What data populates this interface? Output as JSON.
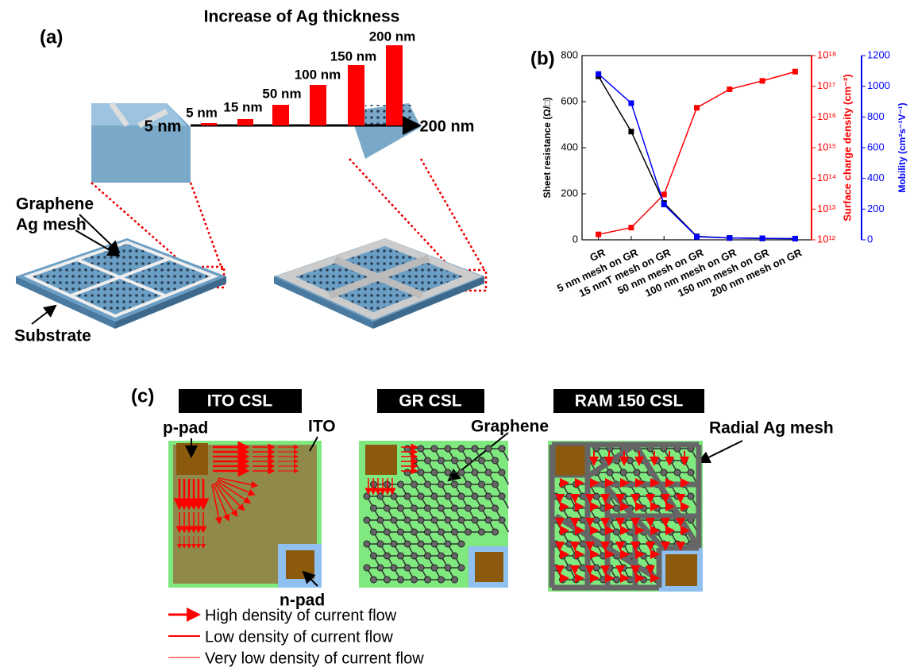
{
  "panel_a": {
    "label": "(a)",
    "title": "Increase of Ag thickness",
    "bar_labels": [
      "5 nm",
      "15 nm",
      "50 nm",
      "100 nm",
      "150 nm",
      "200 nm"
    ],
    "axis_start": "5 nm",
    "axis_end": "200 nm",
    "graphene": "Graphene",
    "ag_mesh": "Ag mesh",
    "substrate": "Substrate"
  },
  "chart_data": {
    "type": "line",
    "label": "(b)",
    "categories": [
      "GR",
      "5 nm mesh on GR",
      "15 nmT mesh on GR",
      "50 nm mesh on GR",
      "100 nm mesh on GR",
      "150 nm mesh on GR",
      "200 nm mesh on GR"
    ],
    "ylabel": "Sheet resistance (Ω/□)",
    "y2label": "Surface charge density (cm⁻²)",
    "y3label": "Mobility (cm²s⁻¹V⁻¹)",
    "ylim": [
      0,
      800
    ],
    "yticks": [
      0,
      200,
      400,
      600,
      800
    ],
    "y2lim": [
      1000000000000.0,
      1e+18
    ],
    "y2log": true,
    "y2ticks": [
      {
        "value": 1000000000000.0,
        "label": "10¹²"
      },
      {
        "value": 10000000000000.0,
        "label": "10¹³"
      },
      {
        "value": 100000000000000.0,
        "label": "10¹⁴"
      },
      {
        "value": 1000000000000000.0,
        "label": "10¹⁵"
      },
      {
        "value": 1e+16,
        "label": "10¹⁶"
      },
      {
        "value": 1e+17,
        "label": "10¹⁷"
      },
      {
        "value": 1e+18,
        "label": "10¹⁸"
      }
    ],
    "y3lim": [
      0,
      1200
    ],
    "y3ticks": [
      0,
      200,
      400,
      600,
      800,
      1000,
      1200
    ],
    "series": [
      {
        "color": "#000000",
        "axis": "y",
        "values": [
          710,
          470,
          160,
          15,
          8,
          6,
          5
        ]
      },
      {
        "color": "#ff0000",
        "axis": "y2",
        "values": [
          1500000000000.0,
          2500000000000.0,
          30000000000000.0,
          2e+16,
          8e+16,
          1.5e+17,
          3e+17
        ]
      },
      {
        "color": "#0000ff",
        "axis": "y3",
        "values": [
          1080,
          890,
          230,
          20,
          12,
          10,
          8
        ]
      }
    ]
  },
  "panel_c": {
    "label": "(c)",
    "titles": [
      "ITO CSL",
      "GR CSL",
      "RAM 150 CSL"
    ],
    "p_pad": "p-pad",
    "ito": "ITO",
    "n_pad": "n-pad",
    "graphene": "Graphene",
    "radial_mesh": "Radial Ag mesh",
    "legend": [
      "High density of current flow",
      "Low density of current flow",
      "Very low density of current flow"
    ]
  }
}
